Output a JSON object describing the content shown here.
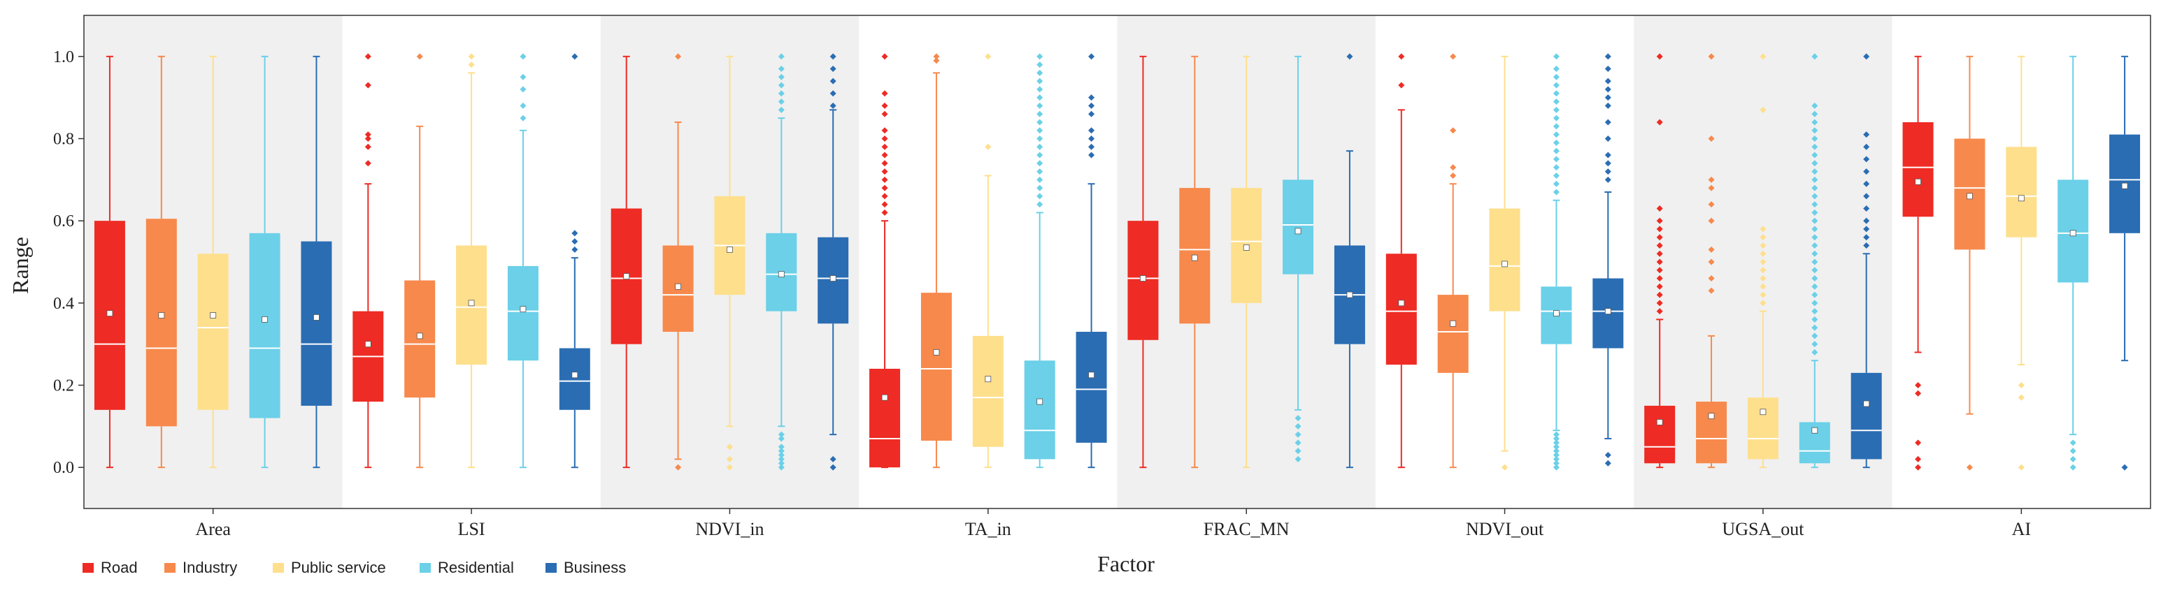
{
  "chart_data": {
    "type": "box",
    "title": "",
    "xlabel": "Factor",
    "ylabel": "Range",
    "ylim": [
      -0.1,
      1.1
    ],
    "yticks": [
      "0.0",
      "0.2",
      "0.4",
      "0.6",
      "0.8",
      "1.0"
    ],
    "categories": [
      "Area",
      "LSI",
      "NDVI_in",
      "TA_in",
      "FRAC_MN",
      "NDVI_out",
      "UGSA_out",
      "AI"
    ],
    "shaded_categories": [
      0,
      2,
      4,
      6
    ],
    "legend": {
      "placement": "bottom-left",
      "entries": [
        "Road",
        "Industry",
        "Public service",
        "Residential",
        "Business"
      ]
    },
    "series": [
      {
        "name": "Road",
        "color": "#ee2b24",
        "fill": "#ee2b24",
        "whisker": "#ee2b24",
        "outlier": "#ee2b24"
      },
      {
        "name": "Industry",
        "color": "#f7894c",
        "fill": "#f7894c",
        "whisker": "#f7894c",
        "outlier": "#f7894c"
      },
      {
        "name": "Public service",
        "color": "#fedf8c",
        "fill": "#fedf8c",
        "whisker": "#fedf8c",
        "outlier": "#fedf8c"
      },
      {
        "name": "Residential",
        "color": "#6bd0e8",
        "fill": "#6bd0e8",
        "whisker": "#6bd0e8",
        "outlier": "#6bd0e8"
      },
      {
        "name": "Business",
        "color": "#2a6db3",
        "fill": "#2a6db3",
        "whisker": "#2a6db3",
        "outlier": "#2a6db3"
      }
    ],
    "boxes": [
      [
        {
          "min": 0,
          "q1": 0.14,
          "median": 0.3,
          "q3": 0.6,
          "max": 1.0,
          "mean": 0.375,
          "outliers": []
        },
        {
          "min": 0,
          "q1": 0.1,
          "median": 0.29,
          "q3": 0.605,
          "max": 1.0,
          "mean": 0.37,
          "outliers": []
        },
        {
          "min": 0,
          "q1": 0.14,
          "median": 0.34,
          "q3": 0.52,
          "max": 1.0,
          "mean": 0.37,
          "outliers": []
        },
        {
          "min": 0,
          "q1": 0.12,
          "median": 0.29,
          "q3": 0.57,
          "max": 1.0,
          "mean": 0.36,
          "outliers": []
        },
        {
          "min": 0,
          "q1": 0.15,
          "median": 0.3,
          "q3": 0.55,
          "max": 1.0,
          "mean": 0.365,
          "outliers": []
        }
      ],
      [
        {
          "min": 0,
          "q1": 0.16,
          "median": 0.27,
          "q3": 0.38,
          "max": 0.69,
          "mean": 0.3,
          "outliers": [
            0.74,
            0.78,
            0.8,
            0.81,
            0.93,
            1.0
          ]
        },
        {
          "min": 0,
          "q1": 0.17,
          "median": 0.3,
          "q3": 0.455,
          "max": 0.83,
          "mean": 0.32,
          "outliers": [
            1.0
          ]
        },
        {
          "min": 0,
          "q1": 0.25,
          "median": 0.39,
          "q3": 0.54,
          "max": 0.96,
          "mean": 0.4,
          "outliers": [
            0.98,
            1.0
          ]
        },
        {
          "min": 0,
          "q1": 0.26,
          "median": 0.38,
          "q3": 0.49,
          "max": 0.82,
          "mean": 0.385,
          "outliers": [
            0.85,
            0.88,
            0.92,
            0.95,
            1.0
          ]
        },
        {
          "min": 0,
          "q1": 0.14,
          "median": 0.21,
          "q3": 0.29,
          "max": 0.51,
          "mean": 0.225,
          "outliers": [
            0.53,
            0.55,
            0.57,
            1.0
          ]
        }
      ],
      [
        {
          "min": 0,
          "q1": 0.3,
          "median": 0.46,
          "q3": 0.63,
          "max": 1.0,
          "mean": 0.465,
          "outliers": []
        },
        {
          "min": 0.02,
          "q1": 0.33,
          "median": 0.42,
          "q3": 0.54,
          "max": 0.84,
          "mean": 0.44,
          "outliers": [
            0,
            1.0
          ]
        },
        {
          "min": 0.1,
          "q1": 0.42,
          "median": 0.54,
          "q3": 0.66,
          "max": 1.0,
          "mean": 0.53,
          "outliers": [
            0,
            0.02,
            0.05
          ]
        },
        {
          "min": 0.1,
          "q1": 0.38,
          "median": 0.47,
          "q3": 0.57,
          "max": 0.85,
          "mean": 0.47,
          "outliers": [
            0,
            0.01,
            0.02,
            0.03,
            0.04,
            0.05,
            0.07,
            0.08,
            0.87,
            0.89,
            0.91,
            0.93,
            0.95,
            0.97,
            1.0
          ]
        },
        {
          "min": 0.08,
          "q1": 0.35,
          "median": 0.46,
          "q3": 0.56,
          "max": 0.87,
          "mean": 0.46,
          "outliers": [
            0,
            0.02,
            0.88,
            0.91,
            0.94,
            0.97,
            1.0
          ]
        }
      ],
      [
        {
          "min": 0,
          "q1": 0,
          "median": 0.07,
          "q3": 0.24,
          "max": 0.6,
          "mean": 0.17,
          "outliers": [
            0.62,
            0.64,
            0.66,
            0.68,
            0.7,
            0.72,
            0.74,
            0.76,
            0.78,
            0.8,
            0.82,
            0.86,
            0.88,
            0.91,
            1.0
          ]
        },
        {
          "min": 0,
          "q1": 0.065,
          "median": 0.24,
          "q3": 0.425,
          "max": 0.96,
          "mean": 0.28,
          "outliers": [
            0.99,
            1.0
          ]
        },
        {
          "min": 0,
          "q1": 0.05,
          "median": 0.17,
          "q3": 0.32,
          "max": 0.71,
          "mean": 0.215,
          "outliers": [
            0.78,
            1.0
          ]
        },
        {
          "min": 0,
          "q1": 0.02,
          "median": 0.09,
          "q3": 0.26,
          "max": 0.62,
          "mean": 0.16,
          "outliers": [
            0.64,
            0.66,
            0.68,
            0.7,
            0.72,
            0.74,
            0.76,
            0.78,
            0.8,
            0.82,
            0.84,
            0.86,
            0.88,
            0.9,
            0.92,
            0.94,
            0.96,
            0.98,
            1.0
          ]
        },
        {
          "min": 0,
          "q1": 0.06,
          "median": 0.19,
          "q3": 0.33,
          "max": 0.69,
          "mean": 0.225,
          "outliers": [
            0.76,
            0.78,
            0.8,
            0.82,
            0.86,
            0.88,
            0.9,
            1.0
          ]
        }
      ],
      [
        {
          "min": 0,
          "q1": 0.31,
          "median": 0.46,
          "q3": 0.6,
          "max": 1.0,
          "mean": 0.46,
          "outliers": []
        },
        {
          "min": 0,
          "q1": 0.35,
          "median": 0.53,
          "q3": 0.68,
          "max": 1.0,
          "mean": 0.51,
          "outliers": []
        },
        {
          "min": 0,
          "q1": 0.4,
          "median": 0.55,
          "q3": 0.68,
          "max": 1.0,
          "mean": 0.535,
          "outliers": []
        },
        {
          "min": 0.14,
          "q1": 0.47,
          "median": 0.59,
          "q3": 0.7,
          "max": 1.0,
          "mean": 0.575,
          "outliers": [
            0.02,
            0.04,
            0.06,
            0.08,
            0.1,
            0.12
          ]
        },
        {
          "min": 0,
          "q1": 0.3,
          "median": 0.42,
          "q3": 0.54,
          "max": 0.77,
          "mean": 0.42,
          "outliers": [
            1.0
          ]
        }
      ],
      [
        {
          "min": 0,
          "q1": 0.25,
          "median": 0.38,
          "q3": 0.52,
          "max": 0.87,
          "mean": 0.4,
          "outliers": [
            0.93,
            1.0
          ]
        },
        {
          "min": 0,
          "q1": 0.23,
          "median": 0.33,
          "q3": 0.42,
          "max": 0.69,
          "mean": 0.35,
          "outliers": [
            0.71,
            0.73,
            0.82,
            1.0
          ]
        },
        {
          "min": 0.04,
          "q1": 0.38,
          "median": 0.49,
          "q3": 0.63,
          "max": 1.0,
          "mean": 0.495,
          "outliers": [
            0
          ]
        },
        {
          "min": 0.09,
          "q1": 0.3,
          "median": 0.38,
          "q3": 0.44,
          "max": 0.65,
          "mean": 0.375,
          "outliers": [
            0,
            0.01,
            0.02,
            0.03,
            0.04,
            0.05,
            0.06,
            0.07,
            0.08,
            0.67,
            0.69,
            0.71,
            0.73,
            0.75,
            0.77,
            0.79,
            0.81,
            0.83,
            0.85,
            0.87,
            0.89,
            0.91,
            0.93,
            0.95,
            0.97,
            1.0
          ]
        },
        {
          "min": 0.07,
          "q1": 0.29,
          "median": 0.38,
          "q3": 0.46,
          "max": 0.67,
          "mean": 0.38,
          "outliers": [
            0.01,
            0.03,
            0.7,
            0.72,
            0.74,
            0.76,
            0.8,
            0.84,
            0.88,
            0.9,
            0.92,
            0.94,
            0.97,
            1.0
          ]
        }
      ],
      [
        {
          "min": 0,
          "q1": 0.01,
          "median": 0.05,
          "q3": 0.15,
          "max": 0.36,
          "mean": 0.11,
          "outliers": [
            0.38,
            0.4,
            0.42,
            0.44,
            0.46,
            0.48,
            0.5,
            0.52,
            0.54,
            0.56,
            0.58,
            0.6,
            0.63,
            0.84,
            1.0
          ]
        },
        {
          "min": 0,
          "q1": 0.01,
          "median": 0.07,
          "q3": 0.16,
          "max": 0.32,
          "mean": 0.125,
          "outliers": [
            0.43,
            0.46,
            0.5,
            0.53,
            0.6,
            0.64,
            0.68,
            0.7,
            0.8,
            1.0
          ]
        },
        {
          "min": 0,
          "q1": 0.02,
          "median": 0.07,
          "q3": 0.17,
          "max": 0.38,
          "mean": 0.135,
          "outliers": [
            0.4,
            0.42,
            0.44,
            0.46,
            0.48,
            0.5,
            0.52,
            0.54,
            0.56,
            0.58,
            0.87,
            1.0
          ]
        },
        {
          "min": 0,
          "q1": 0.01,
          "median": 0.04,
          "q3": 0.11,
          "max": 0.26,
          "mean": 0.09,
          "outliers": [
            0.28,
            0.3,
            0.32,
            0.34,
            0.36,
            0.38,
            0.4,
            0.42,
            0.44,
            0.46,
            0.48,
            0.5,
            0.52,
            0.54,
            0.56,
            0.58,
            0.6,
            0.62,
            0.64,
            0.66,
            0.68,
            0.7,
            0.72,
            0.74,
            0.76,
            0.78,
            0.8,
            0.82,
            0.84,
            0.86,
            0.88,
            1.0
          ]
        },
        {
          "min": 0,
          "q1": 0.02,
          "median": 0.09,
          "q3": 0.23,
          "max": 0.52,
          "mean": 0.155,
          "outliers": [
            0.54,
            0.56,
            0.58,
            0.6,
            0.63,
            0.66,
            0.69,
            0.72,
            0.75,
            0.78,
            0.81,
            1.0
          ]
        }
      ],
      [
        {
          "min": 0.28,
          "q1": 0.61,
          "median": 0.73,
          "q3": 0.84,
          "max": 1.0,
          "mean": 0.695,
          "outliers": [
            0,
            0.02,
            0.06,
            0.18,
            0.2
          ]
        },
        {
          "min": 0.13,
          "q1": 0.53,
          "median": 0.68,
          "q3": 0.8,
          "max": 1.0,
          "mean": 0.66,
          "outliers": [
            0
          ]
        },
        {
          "min": 0.25,
          "q1": 0.56,
          "median": 0.66,
          "q3": 0.78,
          "max": 1.0,
          "mean": 0.655,
          "outliers": [
            0,
            0.17,
            0.2
          ]
        },
        {
          "min": 0.08,
          "q1": 0.45,
          "median": 0.57,
          "q3": 0.7,
          "max": 1.0,
          "mean": 0.57,
          "outliers": [
            0,
            0.02,
            0.04,
            0.06
          ]
        },
        {
          "min": 0.26,
          "q1": 0.57,
          "median": 0.7,
          "q3": 0.81,
          "max": 1.0,
          "mean": 0.685,
          "outliers": [
            0
          ]
        }
      ]
    ]
  }
}
